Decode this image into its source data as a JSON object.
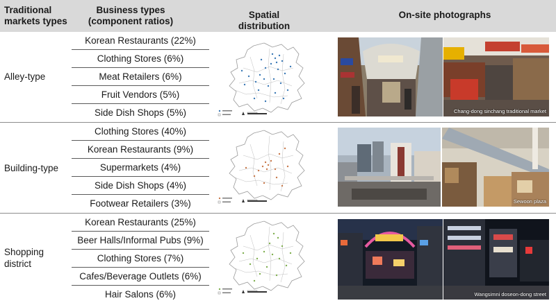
{
  "header": {
    "type": "Traditional markets types",
    "business": "Business types (component ratios)",
    "spatial": "Spatial distribution",
    "photos": "On-site photographs"
  },
  "groups": [
    {
      "type": "Alley-type",
      "items": [
        "Korean Restaurants (22%)",
        "Clothing Stores (6%)",
        "Meat Retailers (6%)",
        "Fruit Vendors (5%)",
        "Side Dish Shops (5%)"
      ],
      "dot_color": "#3a78b5",
      "caption": "Chang-dong sinchang traditional market"
    },
    {
      "type": "Building-type",
      "items": [
        "Clothing Stores (40%)",
        "Korean Restaurants (9%)",
        "Supermarkets (4%)",
        "Side Dish Shops (4%)",
        "Footwear Retailers (3%)"
      ],
      "dot_color": "#c8784a",
      "caption": "Sewoon plaza"
    },
    {
      "type": "Shopping district",
      "items": [
        "Korean Restaurants (25%)",
        "Beer Halls/Informal Pubs (9%)",
        "Clothing Stores (7%)",
        "Cafes/Beverage Outlets (6%)",
        "Hair Salons (6%)"
      ],
      "dot_color": "#7fae4e",
      "caption": "Wangsimni doseon-dong street"
    }
  ]
}
